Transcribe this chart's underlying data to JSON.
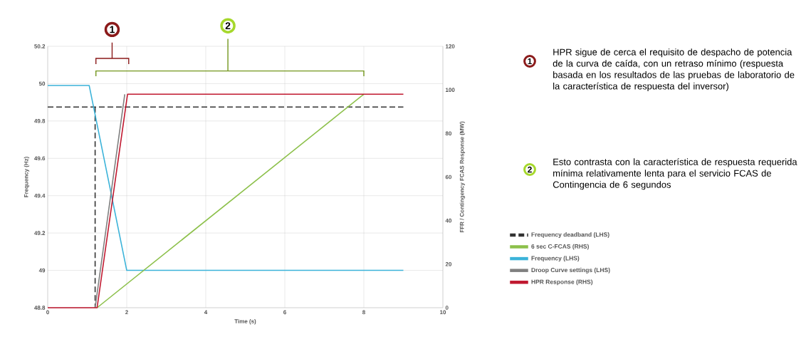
{
  "chart_data": {
    "type": "line",
    "xlabel": "Time (s)",
    "ylabel": "Frequency (Hz)",
    "y2label": "FFR / Contingency FCAS Response (MW)",
    "xlim": [
      0,
      10
    ],
    "xticks": [
      0,
      2,
      4,
      6,
      8,
      10
    ],
    "ylim": [
      48.8,
      50.2
    ],
    "yticks": [
      48.8,
      49,
      49.2,
      49.4,
      49.6,
      49.8,
      50,
      50.2
    ],
    "y2lim": [
      0,
      120
    ],
    "y2ticks": [
      0,
      20,
      40,
      60,
      80,
      100,
      120
    ],
    "grid": true,
    "legend": "right",
    "annotations": [
      "1",
      "2",
      "HPR sigue de cerca el requisito de despacho de potencia de la curva de caída, con un retraso mínimo (respuesta basada en los resultados de las pruebas de laboratorio de la característica de respuesta del inversor)",
      "Esto contrasta con la característica de respuesta requerida mínima relativamente lenta para el servicio FCAS de Contingencia de 6 segundos"
    ],
    "series": [
      {
        "name": "Frequency deadband (LHS)",
        "color": "#333333",
        "line_style": "dashed",
        "x": [
          0,
          9
        ],
        "values": [
          49.875,
          49.875
        ]
      },
      {
        "color": "#333333",
        "line_style": "dashed",
        "x": [
          1.2,
          1.2
        ],
        "values": [
          49.875,
          48.8
        ]
      },
      {
        "name": "6 sec C-FCAS (RHS)",
        "color": "#8cc04a",
        "axis": "y2",
        "x": [
          1.25,
          8
        ],
        "values": [
          0,
          98
        ]
      },
      {
        "name": "Frequency (LHS)",
        "color": "#3bb3d9",
        "x": [
          0,
          1.05,
          2,
          9
        ],
        "values": [
          49.99,
          49.99,
          49,
          49
        ]
      },
      {
        "name": "Droop Curve settings (LHS)",
        "color": "#808080",
        "axis": "y2",
        "x": [
          1.2,
          1.95
        ],
        "values": [
          0,
          98
        ]
      },
      {
        "name": "HPR Response (RHS)",
        "color": "#c0182f",
        "axis": "y2",
        "x": [
          0,
          1.25,
          2.02,
          9
        ],
        "values": [
          0,
          0,
          98,
          98
        ]
      }
    ]
  }
}
